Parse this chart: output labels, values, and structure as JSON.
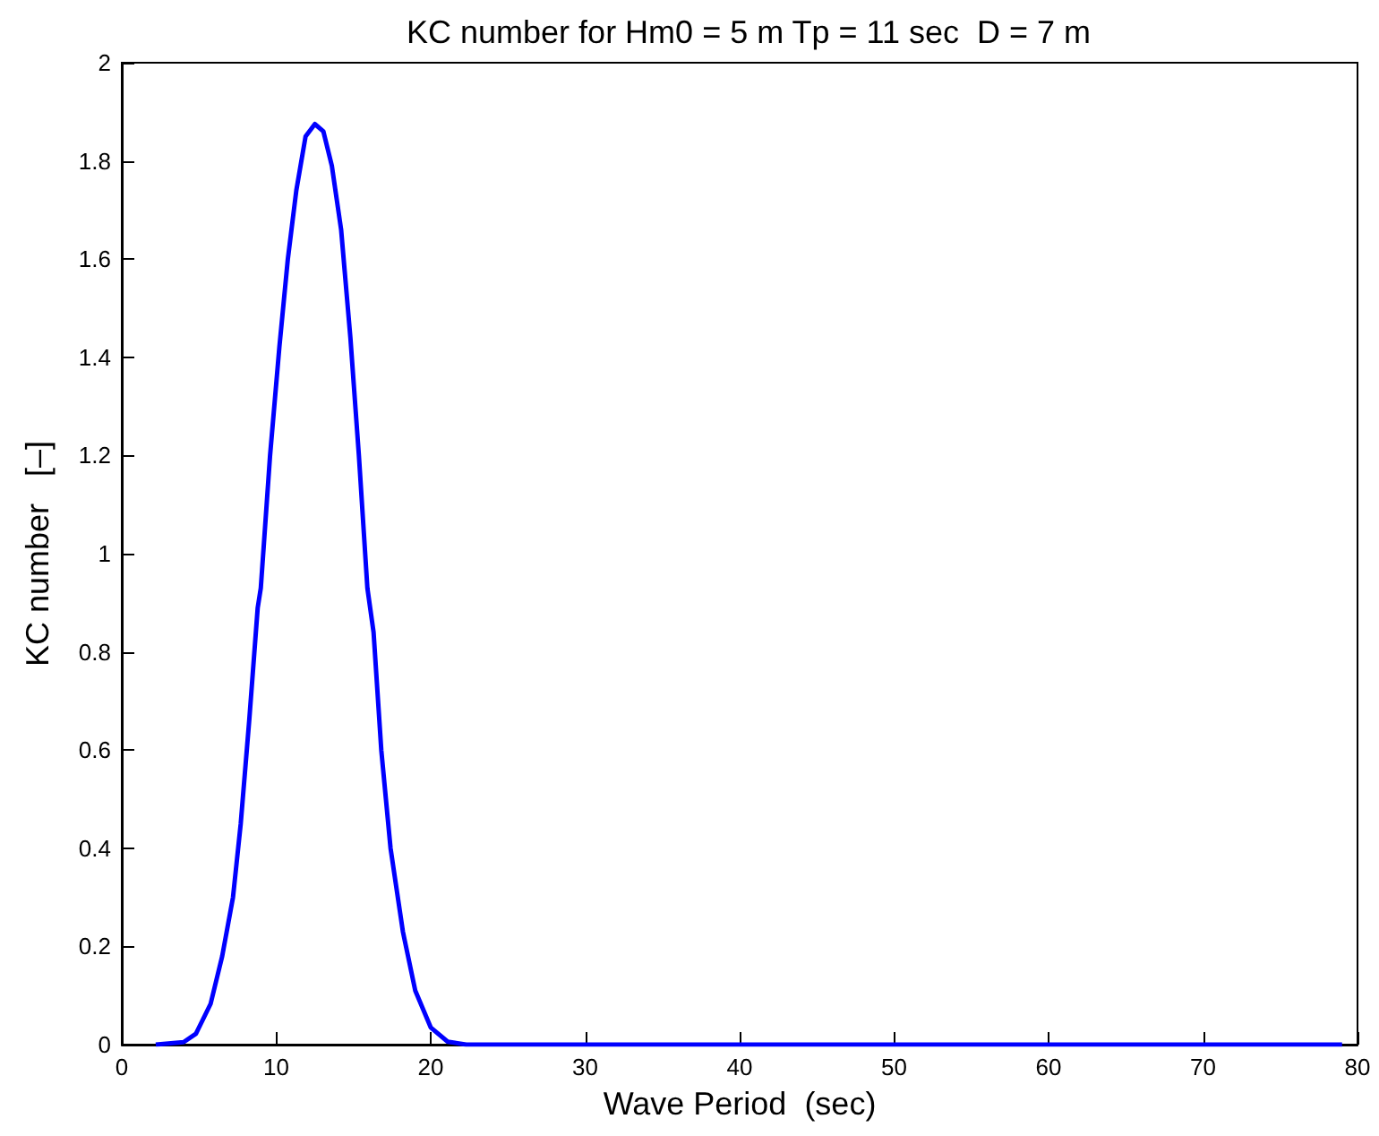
{
  "chart_data": {
    "type": "line",
    "title": "KC number for Hm0 = 5 m Tp = 11 sec  D = 7 m",
    "xlabel": "Wave Period  (sec)",
    "ylabel": "KC number   [–]",
    "x": [
      2.2,
      4.0,
      4.8,
      5.75,
      6.5,
      7.2,
      7.7,
      8.25,
      8.8,
      9.0,
      9.6,
      10.2,
      10.75,
      11.3,
      11.9,
      12.5,
      13.05,
      13.6,
      14.2,
      14.8,
      15.35,
      15.9,
      16.3,
      16.8,
      17.4,
      18.2,
      19.0,
      20.0,
      21.1,
      22.3,
      30,
      40,
      50,
      60,
      70,
      79
    ],
    "series": [
      {
        "color": "#0000ff",
        "values": [
          0,
          0.005,
          0.022,
          0.083,
          0.18,
          0.3,
          0.45,
          0.66,
          0.89,
          0.93,
          1.2,
          1.42,
          1.6,
          1.74,
          1.85,
          1.875,
          1.86,
          1.79,
          1.66,
          1.44,
          1.2,
          0.93,
          0.84,
          0.6,
          0.4,
          0.23,
          0.11,
          0.035,
          0.006,
          0,
          0,
          0,
          0,
          0,
          0,
          0
        ]
      }
    ],
    "xlim": [
      0,
      80
    ],
    "xticks": [
      0,
      10,
      20,
      30,
      40,
      50,
      60,
      70,
      80
    ],
    "ylim": [
      0,
      2
    ],
    "yticks": [
      0,
      0.2,
      0.4,
      0.6,
      0.8,
      1,
      1.2,
      1.4,
      1.6,
      1.8,
      2
    ],
    "grid": false,
    "marker": "none",
    "line_style": "solid"
  }
}
